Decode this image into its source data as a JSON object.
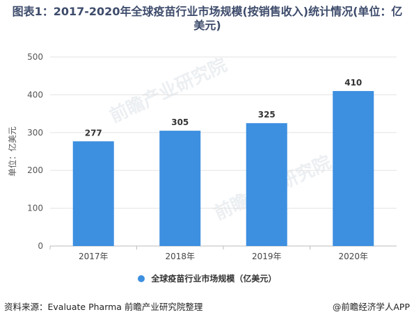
{
  "title_line1": "图表1：2017-2020年全球疫苗行业市场规模(按销售收入)统计情况(单位：亿",
  "title_line2": "美元)",
  "source": "资料来源：Evaluate Pharma 前瞻产业研究院整理",
  "app_credit": "@前瞻经济学人APP",
  "watermark_text": "前瞻产业研究院",
  "colors": {
    "bar": "#3d8fe0",
    "title": "#3d4b6b"
  },
  "chart_data": {
    "type": "bar",
    "categories": [
      "2017年",
      "2018年",
      "2019年",
      "2020年"
    ],
    "series": [
      {
        "name": "全球疫苗行业市场规模（亿美元）",
        "values": [
          277,
          305,
          325,
          410
        ]
      }
    ],
    "ylabel": "单位：亿美元",
    "ylim": [
      0,
      500
    ],
    "yticks": [
      0,
      100,
      200,
      300,
      400,
      500
    ],
    "grid": true,
    "legend": "bottom"
  }
}
